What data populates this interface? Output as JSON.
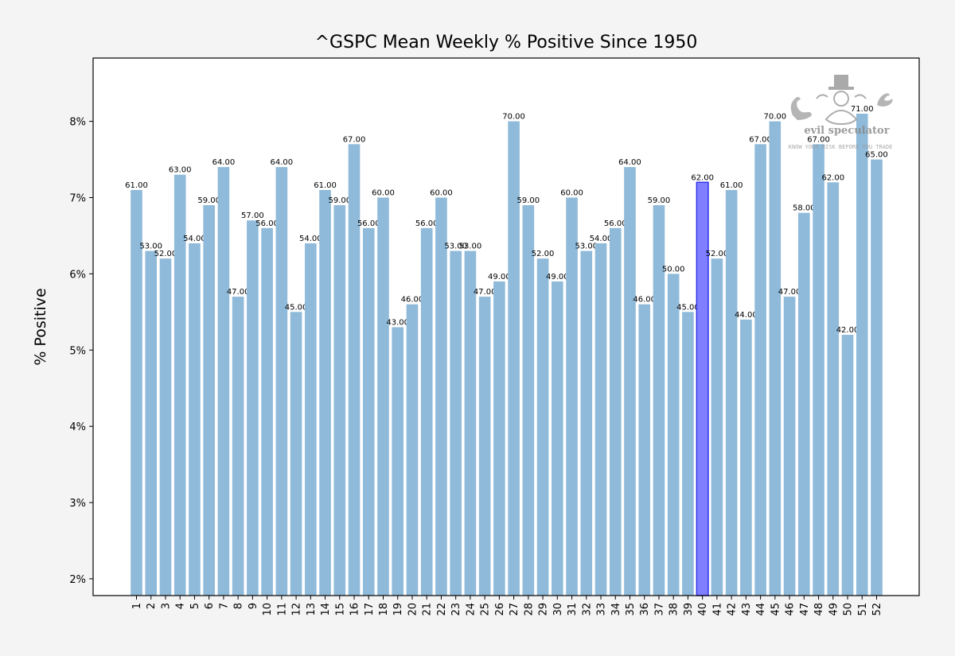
{
  "chart_data": {
    "type": "bar",
    "title": "^GSPC Mean Weekly % Positive Since 1950",
    "xlabel": "",
    "ylabel": "% Positive",
    "ylim": [
      1.78,
      8.83
    ],
    "yticks": [
      2,
      3,
      4,
      5,
      6,
      7,
      8
    ],
    "ytick_labels": [
      "2%",
      "3%",
      "4%",
      "5%",
      "6%",
      "7%",
      "8%"
    ],
    "categories": [
      "1",
      "2",
      "3",
      "4",
      "5",
      "6",
      "7",
      "8",
      "9",
      "10",
      "11",
      "12",
      "13",
      "14",
      "15",
      "16",
      "17",
      "18",
      "19",
      "20",
      "21",
      "22",
      "23",
      "24",
      "25",
      "26",
      "27",
      "28",
      "29",
      "30",
      "31",
      "32",
      "33",
      "34",
      "35",
      "36",
      "37",
      "38",
      "39",
      "40",
      "41",
      "42",
      "43",
      "44",
      "45",
      "46",
      "47",
      "48",
      "49",
      "50",
      "51",
      "52"
    ],
    "values": [
      7.1,
      6.3,
      6.2,
      7.3,
      6.4,
      6.9,
      7.4,
      5.7,
      6.7,
      6.6,
      7.4,
      5.5,
      6.4,
      7.1,
      6.9,
      7.7,
      6.6,
      7.0,
      5.3,
      5.6,
      6.6,
      7.0,
      6.3,
      6.3,
      5.7,
      5.9,
      8.0,
      6.9,
      6.2,
      5.9,
      7.0,
      6.3,
      6.4,
      6.6,
      7.4,
      5.6,
      6.9,
      6.0,
      5.5,
      7.2,
      6.2,
      7.1,
      5.4,
      7.7,
      8.0,
      5.7,
      6.8,
      7.7,
      7.2,
      5.2,
      8.1,
      7.5
    ],
    "data_labels": [
      "61.00",
      "53.00",
      "52.00",
      "63.00",
      "54.00",
      "59.00",
      "64.00",
      "47.00",
      "57.00",
      "56.00",
      "64.00",
      "45.00",
      "54.00",
      "61.00",
      "59.00",
      "67.00",
      "56.00",
      "60.00",
      "43.00",
      "46.00",
      "56.00",
      "60.00",
      "53.00",
      "53.00",
      "47.00",
      "49.00",
      "70.00",
      "59.00",
      "52.00",
      "49.00",
      "60.00",
      "53.00",
      "54.00",
      "56.00",
      "64.00",
      "46.00",
      "59.00",
      "50.00",
      "45.00",
      "62.00",
      "52.00",
      "61.00",
      "44.00",
      "67.00",
      "70.00",
      "47.00",
      "58.00",
      "67.00",
      "62.00",
      "42.00",
      "71.00",
      "65.00"
    ],
    "highlight_index": 39,
    "colors": {
      "bar": "#8fbad9",
      "highlight_fill": "#7f7fff",
      "highlight_edge": "#3333ee",
      "highlight_tick": "#0000cc"
    },
    "grid": false,
    "legend": "none"
  },
  "watermark": {
    "text": "evil speculator",
    "tagline": "KNOW YOUR RISK BEFORE YOU TRADE"
  }
}
